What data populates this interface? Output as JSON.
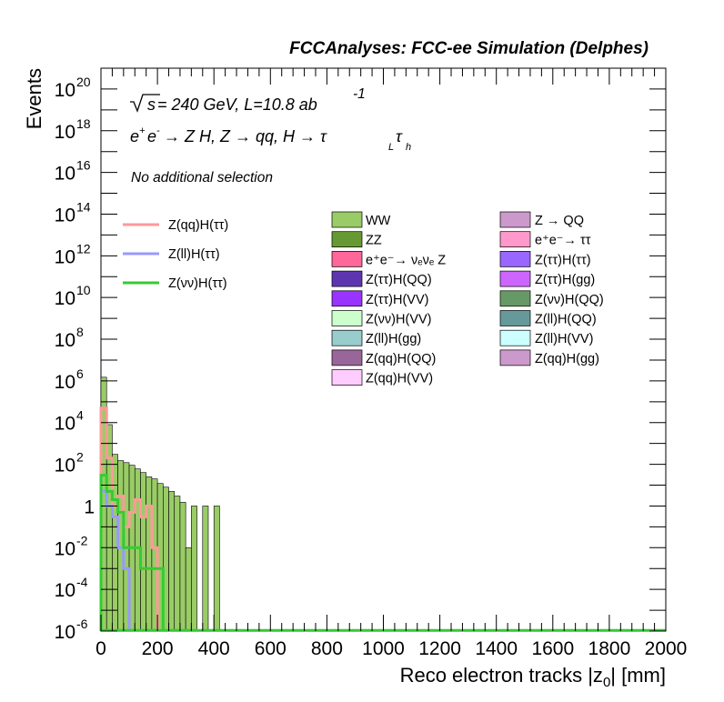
{
  "chart_data": {
    "type": "bar",
    "title": "FCCAnalyses: FCC-ee Simulation (Delphes)",
    "xlabel": "Reco electron tracks |z0| [mm]",
    "ylabel": "Events",
    "xlim": [
      0,
      2000
    ],
    "ylim": [
      1e-06,
      1e+21
    ],
    "log_y": true,
    "x_ticks": [
      "0",
      "200",
      "400",
      "600",
      "800",
      "1000",
      "1200",
      "1400",
      "1600",
      "1800",
      "2000"
    ],
    "y_ticks": [
      {
        "base": "10",
        "exp": "20",
        "value": 1e+20
      },
      {
        "base": "10",
        "exp": "18",
        "value": 1e+18
      },
      {
        "base": "10",
        "exp": "16",
        "value": 1e+16
      },
      {
        "base": "10",
        "exp": "14",
        "value": 100000000000000.0
      },
      {
        "base": "10",
        "exp": "12",
        "value": 1000000000000.0
      },
      {
        "base": "10",
        "exp": "10",
        "value": 10000000000.0
      },
      {
        "base": "10",
        "exp": "8",
        "value": 100000000.0
      },
      {
        "base": "10",
        "exp": "6",
        "value": 1000000.0
      },
      {
        "base": "10",
        "exp": "4",
        "value": 10000.0
      },
      {
        "base": "10",
        "exp": "2",
        "value": 100.0
      },
      {
        "base": "1",
        "exp": "",
        "value": 1
      },
      {
        "base": "10",
        "exp": "-2",
        "value": 0.01
      },
      {
        "base": "10",
        "exp": "-4",
        "value": 0.0001
      },
      {
        "base": "10",
        "exp": "-6",
        "value": 1e-06
      }
    ],
    "annotations": {
      "sqrt_s_prefix": "s",
      "energy_text": " = 240 GeV, L=10.8 ab",
      "energy_exp": "-1",
      "process": {
        "ep": "e",
        "ep_sup": "+",
        "em": "e",
        "em_sup": "-",
        "arrow1": " → Z H, Z  → qq, H  → τ",
        "sub1": "L",
        "tau2": "τ",
        "sub2": "h"
      },
      "selection": "No additional selection"
    },
    "bin_width": 20,
    "stack": [
      {
        "name": "WW",
        "color": "#99cc66",
        "x": [
          0,
          20,
          40,
          60,
          80,
          100,
          120,
          140,
          160,
          180,
          200,
          220,
          240,
          260,
          280,
          300,
          320,
          360,
          400
        ],
        "values": [
          1500000.0,
          8000.0,
          300,
          150,
          120,
          90,
          60,
          40,
          25,
          20,
          12,
          8,
          5,
          3,
          1.5,
          0.01,
          1,
          1,
          1
        ]
      },
      {
        "name": "ZZ",
        "color": "#669933",
        "x": [
          0,
          20,
          40,
          60
        ],
        "values": [
          2000.0,
          50,
          3,
          0.3
        ]
      },
      {
        "name": "Z(ττ)H(QQ)",
        "color": "#5e35b1",
        "x": [
          0,
          20,
          40,
          60
        ],
        "values": [
          100,
          20,
          2,
          0.05
        ]
      },
      {
        "name": "Z(ττ)H(VV)",
        "color": "#9933ff",
        "x": [
          20,
          40,
          60,
          80
        ],
        "values": [
          10,
          1,
          0.05,
          0.005
        ]
      },
      {
        "name": "Z(qq)H(VV)",
        "color": "#ffccff",
        "x": [
          80,
          100,
          140,
          160
        ],
        "values": [
          0.03,
          0.01,
          0.05,
          0.01
        ]
      },
      {
        "name": "Z(νν)H(VV)",
        "color": "#ccffcc",
        "x": [
          100,
          140,
          160,
          180
        ],
        "values": [
          0.02,
          0.01,
          0.1,
          0.02
        ]
      }
    ],
    "lines": [
      {
        "name": "Z(qq)H(ττ)",
        "color": "#ff9999",
        "x": [
          0,
          20,
          40,
          60,
          80,
          100,
          120,
          140,
          160,
          180
        ],
        "values": [
          50000.0,
          200,
          1,
          3,
          0.1,
          0.5,
          2,
          0.3,
          1,
          0.01
        ]
      },
      {
        "name": "Z(ll)H(ττ)",
        "color": "#9999ff",
        "x": [
          0,
          20,
          40,
          60,
          80
        ],
        "values": [
          5,
          1,
          0.3,
          0.01,
          0.001
        ]
      },
      {
        "name": "Z(νν)H(ττ)",
        "color": "#33cc33",
        "x": [
          0,
          20,
          40,
          60,
          80,
          100,
          120,
          140,
          160,
          180,
          200
        ],
        "values": [
          30,
          5,
          2,
          0.5,
          0.01,
          0.01,
          0.01,
          0.001,
          0.001,
          0.001,
          0.001
        ]
      }
    ],
    "legend_lines": [
      {
        "label": "Z(qq)H(ττ)",
        "color": "#ff9999"
      },
      {
        "label": "Z(ll)H(ττ)",
        "color": "#9999ff"
      },
      {
        "label": "Z(νν)H(ττ)",
        "color": "#33cc33"
      }
    ],
    "legend_col1": [
      {
        "label": "WW",
        "color": "#99cc66"
      },
      {
        "label": "ZZ",
        "color": "#669933"
      },
      {
        "label": "e⁺e⁻→ νₑνₑ Z",
        "color": "#ff6699"
      },
      {
        "label": "Z(ττ)H(QQ)",
        "color": "#5e35b1"
      },
      {
        "label": "Z(ττ)H(VV)",
        "color": "#9933ff"
      },
      {
        "label": "Z(νν)H(VV)",
        "color": "#ccffcc"
      },
      {
        "label": "Z(ll)H(gg)",
        "color": "#99cccc"
      },
      {
        "label": "Z(qq)H(QQ)",
        "color": "#996699"
      },
      {
        "label": "Z(qq)H(VV)",
        "color": "#ffccff"
      }
    ],
    "legend_col2": [
      {
        "label": "Z → QQ",
        "color": "#cc99cc"
      },
      {
        "label": "e⁺e⁻→ ττ",
        "color": "#ff99cc"
      },
      {
        "label": "Z(ττ)H(ττ)",
        "color": "#9966ff"
      },
      {
        "label": "Z(ττ)H(gg)",
        "color": "#cc66ff"
      },
      {
        "label": "Z(νν)H(QQ)",
        "color": "#669966"
      },
      {
        "label": "Z(ll)H(QQ)",
        "color": "#669999"
      },
      {
        "label": "Z(ll)H(VV)",
        "color": "#ccffff"
      },
      {
        "label": "Z(qq)H(gg)",
        "color": "#cc99cc"
      }
    ]
  }
}
